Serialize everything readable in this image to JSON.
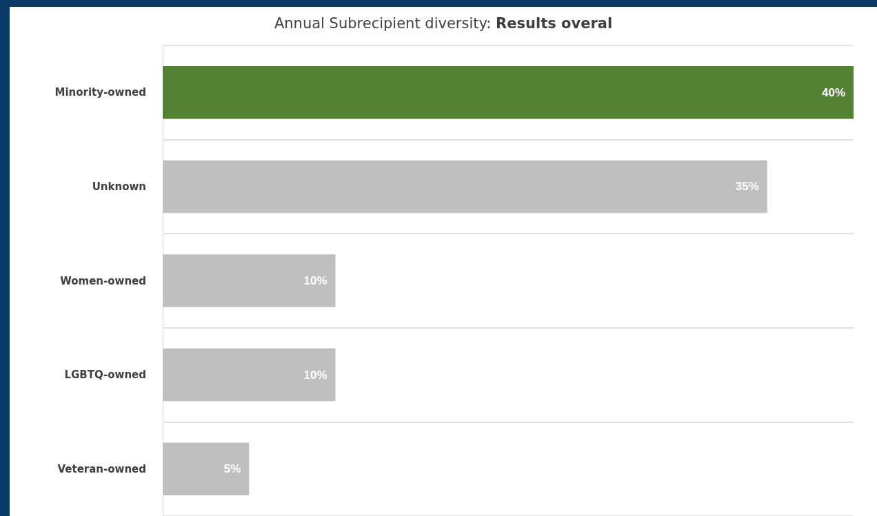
{
  "chart_data": {
    "type": "bar",
    "orientation": "horizontal",
    "title": "Annual Subrecipient diversity: Results overal",
    "categories": [
      "Minority-owned",
      "Unknown",
      "Women-owned",
      "LGBTQ-owned",
      "Veteran-owned"
    ],
    "values": [
      40,
      35,
      10,
      10,
      5
    ],
    "colors": [
      "#548235",
      "#bfbfbf",
      "#bfbfbf",
      "#bfbfbf",
      "#bfbfbf"
    ],
    "value_labels": [
      "40%",
      "35%",
      "10%",
      "10%",
      "5%"
    ],
    "grid": "y",
    "tick_labels": "y"
  }
}
